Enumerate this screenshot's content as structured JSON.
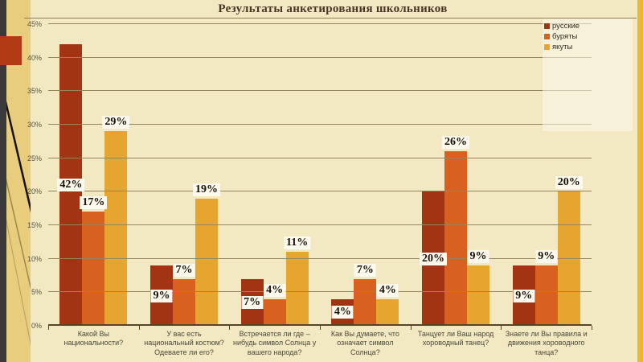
{
  "slide": {
    "title": "Результаты анкетирования школьников"
  },
  "theme": {
    "background": "#f2e9c2",
    "left_dark_strip": "#3a3a3a",
    "left_gold_strip": "#e8cd7e",
    "right_gold_strip": "#edb92c",
    "accent_red_rect": "#b23a14",
    "gridline": "#94865c",
    "title_text": "#4a3526"
  },
  "chart_data": {
    "type": "bar",
    "title": "Результаты анкетирования школьников",
    "categories": [
      "Какой Вы национальности?",
      "У вас есть национальный костюм? Одеваете ли его?",
      "Встречается ли где – нибудь символ Солнца у вашего народа?",
      "Как Вы думаете, что означает символ Солнца?",
      "Танцует ли Ваш народ хороводный танец?",
      "Знаете ли Вы правила и движения хороводного танца?"
    ],
    "series": [
      {
        "name": "русские",
        "color": "#a23413",
        "values": [
          42,
          9,
          7,
          4,
          20,
          9
        ]
      },
      {
        "name": "буряты",
        "color": "#d96120",
        "values": [
          17,
          7,
          4,
          7,
          26,
          9
        ]
      },
      {
        "name": "якуты",
        "color": "#e6a52f",
        "values": [
          29,
          19,
          11,
          4,
          9,
          20
        ]
      }
    ],
    "value_suffix": "%",
    "xlabel": "",
    "ylabel": "",
    "ylim": [
      0,
      45
    ],
    "y_ticks": [
      "0%",
      "5%",
      "10%",
      "15%",
      "20%",
      "25%",
      "30%",
      "35%",
      "40%",
      "45%"
    ],
    "grid": true,
    "legend_position": "top-right"
  }
}
